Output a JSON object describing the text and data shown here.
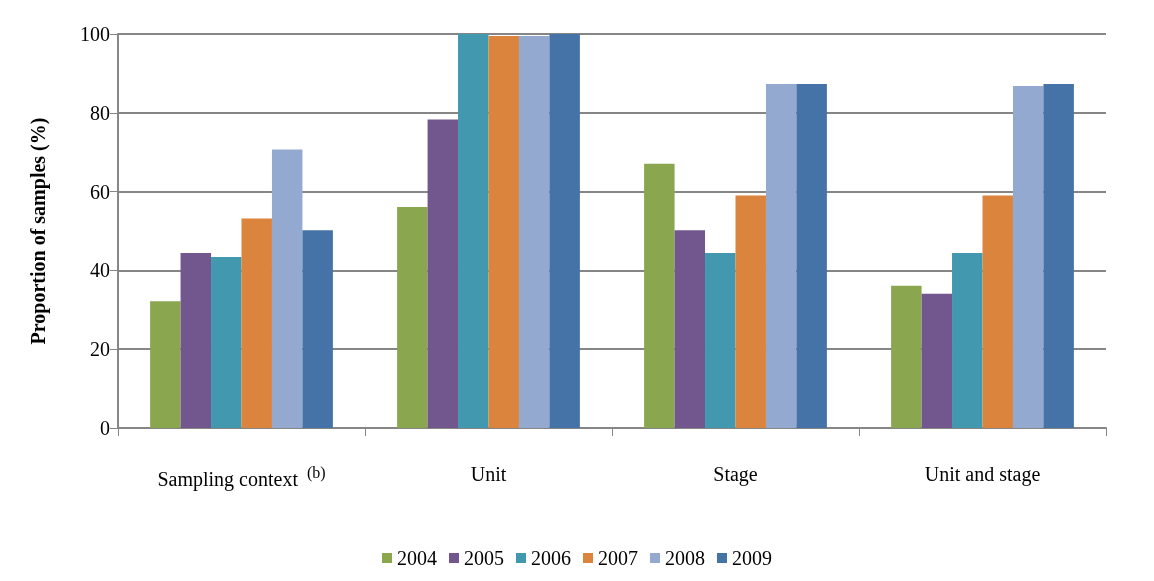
{
  "chart_data": {
    "type": "bar",
    "ylabel": "Proportion of samples (%)",
    "categories": [
      "Sampling context $^{(b)}$",
      "Unit",
      "Stage",
      "Unit and stage"
    ],
    "series": [
      {
        "name": "2004",
        "color": "#8aa64e",
        "values": [
          32.2,
          56.1,
          67.1,
          36.1
        ]
      },
      {
        "name": "2005",
        "color": "#72578f",
        "values": [
          44.4,
          78.3,
          50.2,
          34.1
        ]
      },
      {
        "name": "2006",
        "color": "#4198af",
        "values": [
          43.4,
          100,
          44.4,
          44.4
        ]
      },
      {
        "name": "2007",
        "color": "#db843d",
        "values": [
          53.2,
          99.5,
          59,
          59
        ]
      },
      {
        "name": "2008",
        "color": "#93a9cf",
        "values": [
          70.7,
          99.5,
          87.3,
          86.8
        ]
      },
      {
        "name": "2009",
        "color": "#4572a7",
        "values": [
          50.2,
          100,
          87.3,
          87.3
        ]
      }
    ],
    "ylim": [
      0,
      100
    ],
    "yticks": [
      0,
      20,
      40,
      60,
      80,
      100
    ],
    "grid": "y",
    "legend": "bottom"
  }
}
